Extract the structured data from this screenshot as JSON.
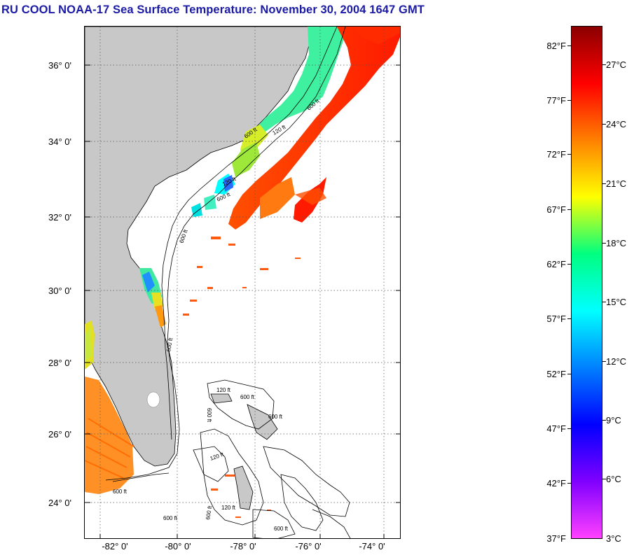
{
  "title": "RU COOL  NOAA-17  Sea Surface Temperature:  November 30, 2004 1647 GMT",
  "map": {
    "lat_labels": [
      "36° 0'",
      "34° 0'",
      "32° 0'",
      "30° 0'",
      "28° 0'",
      "26° 0'",
      "24° 0'"
    ],
    "lon_labels": [
      "-82° 0'",
      "-80° 0'",
      "-78° 0'",
      "-76° 0'",
      "-74° 0'"
    ],
    "contour_labels": [
      "120 ft",
      "600 ft",
      "120 ft",
      "600 ft",
      "600 ft",
      "120 ft",
      "600 ft",
      "600 ft",
      "600 ft",
      "120 ft",
      "600 ft",
      "600 ft",
      "600 ft",
      "600 ft",
      "120 ft",
      "600 ft",
      "600 ft"
    ],
    "land_color": "#c8c8c8",
    "no_data_color": "#ffffff"
  },
  "colorbar": {
    "fahrenheit_labels": [
      "82°F",
      "77°F",
      "72°F",
      "67°F",
      "62°F",
      "57°F",
      "52°F",
      "47°F",
      "42°F",
      "37°F"
    ],
    "celsius_labels": [
      "27°C",
      "24°C",
      "21°C",
      "18°C",
      "15°C",
      "12°C",
      "9°C",
      "6°C",
      "3°C"
    ],
    "colors": [
      "#8b0000",
      "#ff0000",
      "#ff8000",
      "#ffff00",
      "#00ff80",
      "#00ffff",
      "#0080ff",
      "#0000ff",
      "#8000ff",
      "#ff40ff"
    ]
  }
}
